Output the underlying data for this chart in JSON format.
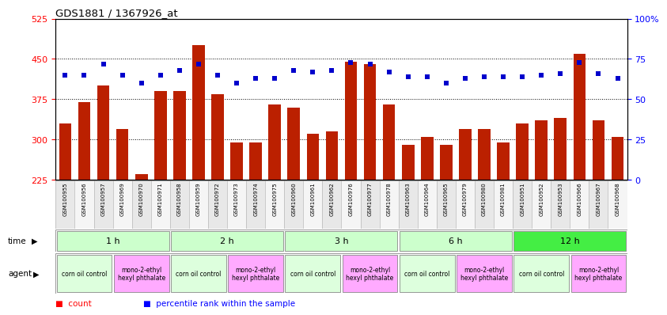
{
  "title": "GDS1881 / 1367926_at",
  "samples": [
    "GSM100955",
    "GSM100956",
    "GSM100957",
    "GSM100969",
    "GSM100970",
    "GSM100971",
    "GSM100958",
    "GSM100959",
    "GSM100972",
    "GSM100973",
    "GSM100974",
    "GSM100975",
    "GSM100960",
    "GSM100961",
    "GSM100962",
    "GSM100976",
    "GSM100977",
    "GSM100978",
    "GSM100963",
    "GSM100964",
    "GSM100965",
    "GSM100979",
    "GSM100980",
    "GSM100981",
    "GSM100951",
    "GSM100952",
    "GSM100953",
    "GSM100966",
    "GSM100967",
    "GSM100968"
  ],
  "counts": [
    330,
    370,
    400,
    320,
    235,
    390,
    390,
    475,
    385,
    295,
    295,
    365,
    360,
    310,
    315,
    445,
    440,
    365,
    290,
    305,
    290,
    320,
    320,
    295,
    330,
    335,
    340,
    460,
    335,
    305
  ],
  "percentiles": [
    65,
    65,
    72,
    65,
    60,
    65,
    68,
    72,
    65,
    60,
    63,
    63,
    68,
    67,
    68,
    73,
    72,
    67,
    64,
    64,
    60,
    63,
    64,
    64,
    64,
    65,
    66,
    73,
    66,
    63
  ],
  "ylim_left": [
    225,
    525
  ],
  "ylim_right": [
    0,
    100
  ],
  "yticks_left": [
    225,
    300,
    375,
    450,
    525
  ],
  "yticks_right": [
    0,
    25,
    50,
    75,
    100
  ],
  "ytick_labels_right": [
    "0",
    "25",
    "50",
    "75",
    "100%"
  ],
  "bar_color": "#bb2000",
  "dot_color": "#0000cc",
  "time_groups": [
    {
      "label": "1 h",
      "start": 0,
      "end": 6,
      "color": "#ccffcc"
    },
    {
      "label": "2 h",
      "start": 6,
      "end": 12,
      "color": "#ccffcc"
    },
    {
      "label": "3 h",
      "start": 12,
      "end": 18,
      "color": "#ccffcc"
    },
    {
      "label": "6 h",
      "start": 18,
      "end": 24,
      "color": "#ccffcc"
    },
    {
      "label": "12 h",
      "start": 24,
      "end": 30,
      "color": "#44ee44"
    }
  ],
  "agent_groups": [
    {
      "label": "corn oil control",
      "start": 0,
      "end": 3,
      "color": "#ddffdd"
    },
    {
      "label": "mono-2-ethyl\nhexyl phthalate",
      "start": 3,
      "end": 6,
      "color": "#ffaaff"
    },
    {
      "label": "corn oil control",
      "start": 6,
      "end": 9,
      "color": "#ddffdd"
    },
    {
      "label": "mono-2-ethyl\nhexyl phthalate",
      "start": 9,
      "end": 12,
      "color": "#ffaaff"
    },
    {
      "label": "corn oil control",
      "start": 12,
      "end": 15,
      "color": "#ddffdd"
    },
    {
      "label": "mono-2-ethyl\nhexyl phthalate",
      "start": 15,
      "end": 18,
      "color": "#ffaaff"
    },
    {
      "label": "corn oil control",
      "start": 18,
      "end": 21,
      "color": "#ddffdd"
    },
    {
      "label": "mono-2-ethyl\nhexyl phthalate",
      "start": 21,
      "end": 24,
      "color": "#ffaaff"
    },
    {
      "label": "corn oil control",
      "start": 24,
      "end": 27,
      "color": "#ddffdd"
    },
    {
      "label": "mono-2-ethyl\nhexyl phthalate",
      "start": 27,
      "end": 30,
      "color": "#ffaaff"
    }
  ],
  "background_color": "#ffffff",
  "label_bg_even": "#e8e8e8",
  "label_bg_odd": "#f5f5f5"
}
